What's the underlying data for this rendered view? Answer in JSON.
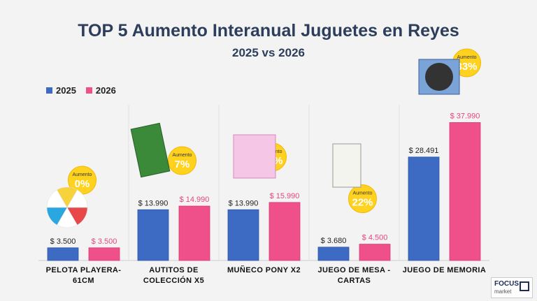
{
  "header": {
    "title": "TOP 5 Aumento Interanual Juguetes en Reyes",
    "subtitle": "2025 vs 2026"
  },
  "legend": {
    "items": [
      {
        "label": "2025",
        "color": "#3d6bc4"
      },
      {
        "label": "2026",
        "color": "#f0508a"
      }
    ]
  },
  "chart_data": {
    "type": "bar",
    "categories": [
      "PELOTA PLAYERA-\n61CM",
      "AUTITOS DE\nCOLECCIÓN X5",
      "MUÑECO PONY X2",
      "JUEGO DE MESA -\nCARTAS",
      "JUEGO DE MEMORIA"
    ],
    "series": [
      {
        "name": "2025",
        "values": [
          3500,
          13990,
          13990,
          3680,
          28491
        ],
        "color": "#3d6bc4"
      },
      {
        "name": "2026",
        "values": [
          3500,
          14990,
          15990,
          4500,
          37990
        ],
        "color": "#f0508a"
      }
    ],
    "value_labels_2025": [
      "$ 3.500",
      "$ 13.990",
      "$ 13.990",
      "$ 3.680",
      "$ 28.491"
    ],
    "value_labels_2026": [
      "$ 3.500",
      "$ 14.990",
      "$ 15.990",
      "$ 4.500",
      "$ 37.990"
    ],
    "increase_label": "Aumento",
    "increase_values": [
      "0%",
      "7%",
      "14%",
      "22%",
      "33%"
    ],
    "ylim": [
      0,
      40000
    ],
    "grid": false,
    "legend_position": "top-left"
  },
  "logo": {
    "name": "FOCUS",
    "sub": "market"
  }
}
